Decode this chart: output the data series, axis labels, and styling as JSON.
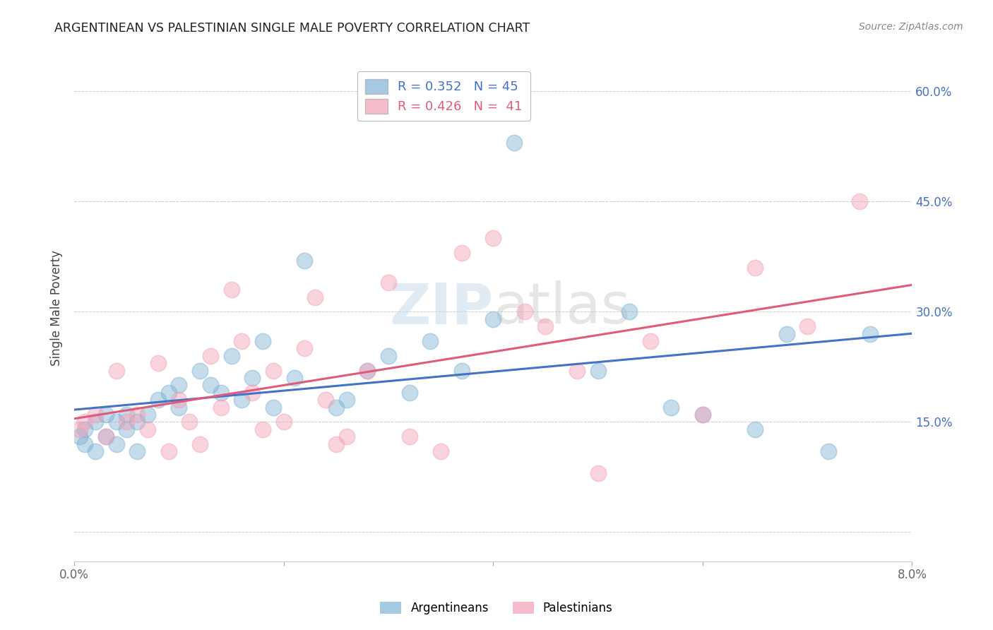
{
  "title": "ARGENTINEAN VS PALESTINIAN SINGLE MALE POVERTY CORRELATION CHART",
  "source": "Source: ZipAtlas.com",
  "ylabel": "Single Male Poverty",
  "color_blue": "#7fb3d3",
  "color_pink": "#f4a0b5",
  "color_blue_line": "#4472c4",
  "color_pink_line": "#e05a7a",
  "color_ytick_right": "#4472c4",
  "watermark_color": "#c5d8ea",
  "xlim": [
    0.0,
    0.08
  ],
  "ylim": [
    -0.04,
    0.65
  ],
  "yticks": [
    0.0,
    0.15,
    0.3,
    0.45,
    0.6
  ],
  "xtick_labels": [
    "0.0%",
    "",
    "",
    "",
    "8.0%"
  ],
  "ytick_labels_right": [
    "",
    "15.0%",
    "30.0%",
    "45.0%",
    "60.0%"
  ],
  "legend_label1": "Argentineans",
  "legend_label2": "Palestinians",
  "argentineans_x": [
    0.0005,
    0.001,
    0.001,
    0.002,
    0.002,
    0.003,
    0.003,
    0.004,
    0.004,
    0.005,
    0.005,
    0.006,
    0.006,
    0.007,
    0.008,
    0.009,
    0.01,
    0.01,
    0.012,
    0.013,
    0.014,
    0.015,
    0.016,
    0.017,
    0.018,
    0.019,
    0.021,
    0.022,
    0.025,
    0.026,
    0.028,
    0.03,
    0.032,
    0.034,
    0.037,
    0.04,
    0.042,
    0.05,
    0.053,
    0.057,
    0.06,
    0.065,
    0.068,
    0.072,
    0.076
  ],
  "argentineans_y": [
    0.13,
    0.14,
    0.12,
    0.15,
    0.11,
    0.16,
    0.13,
    0.15,
    0.12,
    0.14,
    0.16,
    0.15,
    0.11,
    0.16,
    0.18,
    0.19,
    0.2,
    0.17,
    0.22,
    0.2,
    0.19,
    0.24,
    0.18,
    0.21,
    0.26,
    0.17,
    0.21,
    0.37,
    0.17,
    0.18,
    0.22,
    0.24,
    0.19,
    0.26,
    0.22,
    0.29,
    0.53,
    0.22,
    0.3,
    0.17,
    0.16,
    0.14,
    0.27,
    0.11,
    0.27
  ],
  "palestinians_x": [
    0.0005,
    0.001,
    0.002,
    0.003,
    0.004,
    0.005,
    0.006,
    0.007,
    0.008,
    0.009,
    0.01,
    0.011,
    0.012,
    0.013,
    0.014,
    0.015,
    0.016,
    0.017,
    0.018,
    0.019,
    0.02,
    0.022,
    0.023,
    0.024,
    0.025,
    0.026,
    0.028,
    0.03,
    0.032,
    0.035,
    0.037,
    0.04,
    0.043,
    0.045,
    0.048,
    0.05,
    0.055,
    0.06,
    0.065,
    0.07,
    0.075
  ],
  "palestinians_y": [
    0.14,
    0.15,
    0.16,
    0.13,
    0.22,
    0.15,
    0.16,
    0.14,
    0.23,
    0.11,
    0.18,
    0.15,
    0.12,
    0.24,
    0.17,
    0.33,
    0.26,
    0.19,
    0.14,
    0.22,
    0.15,
    0.25,
    0.32,
    0.18,
    0.12,
    0.13,
    0.22,
    0.34,
    0.13,
    0.11,
    0.38,
    0.4,
    0.3,
    0.28,
    0.22,
    0.08,
    0.26,
    0.16,
    0.36,
    0.28,
    0.45
  ]
}
